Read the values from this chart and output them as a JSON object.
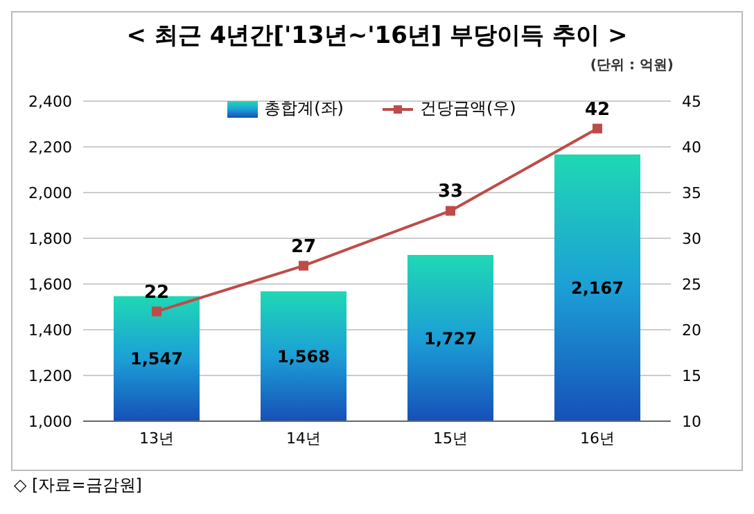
{
  "chart_data": {
    "type": "bar",
    "title": "< 최근 4년간['13년~'16년] 부당이득 추이 >",
    "annotations": [
      "(단위 : 억원)",
      "◇ [자료=금감원]"
    ],
    "categories": [
      "13년",
      "14년",
      "15년",
      "16년"
    ],
    "series": [
      {
        "name": "총합계(좌)",
        "color": "#1c9fd6",
        "values": [
          1547,
          1568,
          1727,
          2167
        ],
        "value_labels": [
          "1,547",
          "1,568",
          "1,727",
          "2,167"
        ]
      },
      {
        "name": "건당금액(우)",
        "type": "line",
        "axis": "y2",
        "color": "#be4b48",
        "values": [
          22,
          27,
          33,
          42
        ]
      }
    ],
    "ylim": [
      1000,
      2400
    ],
    "yticks": [
      {
        "value": 1000,
        "label": "1,000"
      },
      {
        "value": 1200,
        "label": "1,200"
      },
      {
        "value": 1400,
        "label": "1,400"
      },
      {
        "value": 1600,
        "label": "1,600"
      },
      {
        "value": 1800,
        "label": "1,800"
      },
      {
        "value": 2000,
        "label": "2,000"
      },
      {
        "value": 2200,
        "label": "2,200"
      },
      {
        "value": 2400,
        "label": "2,400"
      }
    ],
    "y2lim": [
      10,
      45
    ],
    "y2ticks": [
      10,
      15,
      20,
      25,
      30,
      35,
      40,
      45
    ],
    "grid": "y",
    "legend": "top",
    "marker": "square",
    "data_labels": true
  }
}
